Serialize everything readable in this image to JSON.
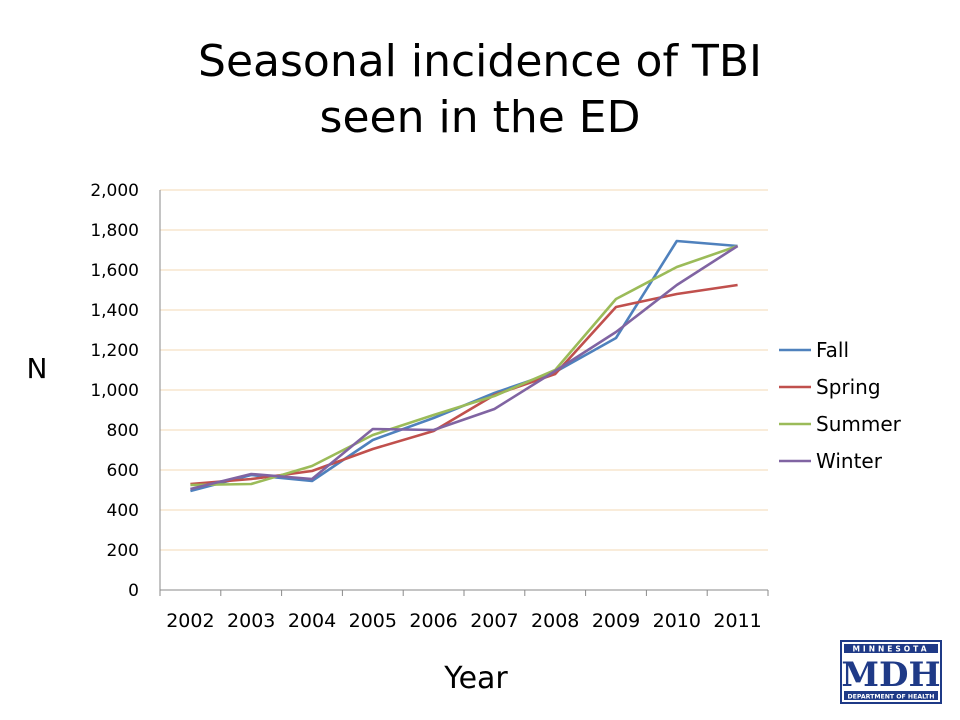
{
  "chart_data": {
    "type": "line",
    "title": "Seasonal incidence of TBI seen in the ED",
    "title_lines": [
      "Seasonal incidence of TBI",
      "seen in the ED"
    ],
    "xlabel": "Year",
    "ylabel": "N",
    "categories": [
      "2002",
      "2003",
      "2004",
      "2005",
      "2006",
      "2007",
      "2008",
      "2009",
      "2010",
      "2011"
    ],
    "ylim": [
      0,
      2000
    ],
    "yticks": [
      0,
      200,
      400,
      600,
      800,
      1000,
      1200,
      1400,
      1600,
      1800,
      2000
    ],
    "ytick_labels": [
      "0",
      "200",
      "400",
      "600",
      "800",
      "1,000",
      "1,200",
      "1,400",
      "1,600",
      "1,800",
      "2,000"
    ],
    "grid": true,
    "legend_position": "right",
    "series": [
      {
        "name": "Fall",
        "color": "#4F81BD",
        "values": [
          495,
          575,
          545,
          750,
          860,
          985,
          1090,
          1260,
          1745,
          1720
        ]
      },
      {
        "name": "Spring",
        "color": "#C0504D",
        "values": [
          530,
          555,
          595,
          705,
          795,
          975,
          1080,
          1415,
          1480,
          1525
        ]
      },
      {
        "name": "Summer",
        "color": "#9BBB59",
        "values": [
          525,
          530,
          620,
          775,
          875,
          970,
          1100,
          1455,
          1615,
          1720
        ]
      },
      {
        "name": "Winter",
        "color": "#8064A2",
        "values": [
          505,
          580,
          555,
          805,
          800,
          905,
          1095,
          1290,
          1525,
          1720
        ]
      }
    ]
  },
  "logo": {
    "top_text": "MINNESOTA",
    "main_text": "MDH",
    "bottom_text": "DEPARTMENT OF HEALTH",
    "color": "#1F3A87"
  }
}
